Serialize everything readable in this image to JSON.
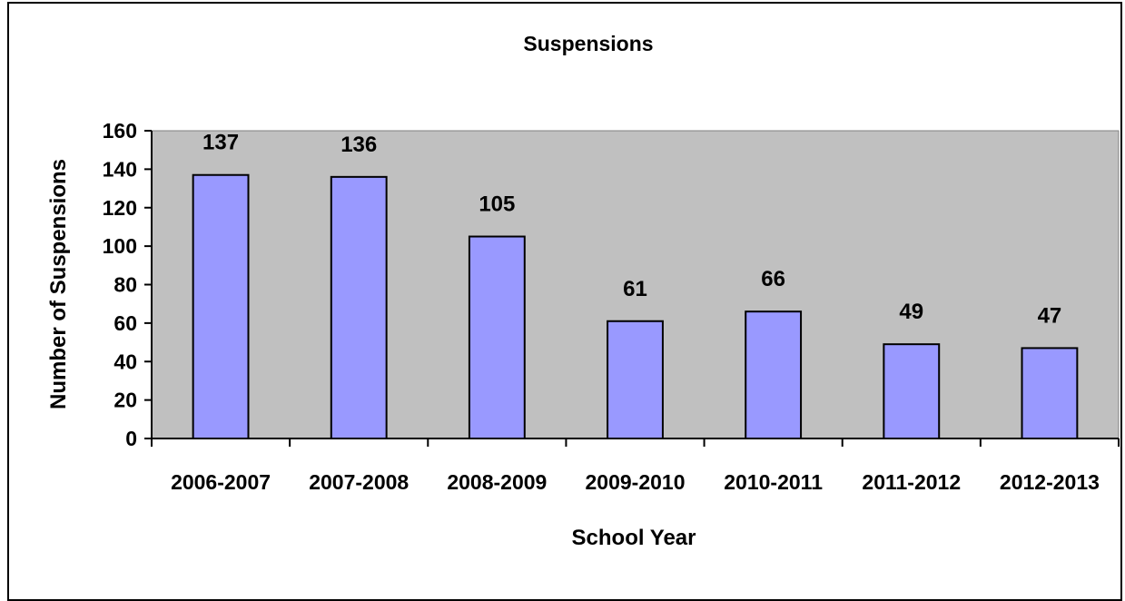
{
  "chart_data": {
    "type": "bar",
    "title": "Suspensions",
    "xlabel": "School Year",
    "ylabel": "Number of Suspensions",
    "categories": [
      "2006-2007",
      "2007-2008",
      "2008-2009",
      "2009-2010",
      "2010-2011",
      "2011-2012",
      "2012-2013"
    ],
    "values": [
      137,
      136,
      105,
      61,
      66,
      49,
      47
    ],
    "data_labels": [
      "137",
      "136",
      "105",
      "61",
      "66",
      "49",
      "47"
    ],
    "ylim": [
      0,
      160
    ],
    "yticks": [
      "0",
      "20",
      "40",
      "60",
      "80",
      "100",
      "120",
      "140",
      "160"
    ],
    "grid": false,
    "legend": "none",
    "colors": {
      "bar_fill": "#9999FF",
      "bar_stroke": "#000000",
      "plot_background": "#C0C0C0"
    }
  }
}
